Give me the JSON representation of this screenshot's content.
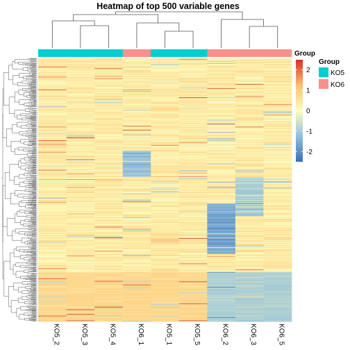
{
  "chart_data": {
    "type": "heatmap",
    "title": "Heatmap of top 500 variable genes",
    "columns": [
      "KO5_2",
      "KO5_3",
      "KO5_4",
      "KO6_1",
      "KO5_1",
      "KO5_5",
      "KO6_2",
      "KO6_3",
      "KO6_5"
    ],
    "column_groups": [
      "KO5",
      "KO5",
      "KO5",
      "KO6",
      "KO5",
      "KO5",
      "KO6",
      "KO6",
      "KO6"
    ],
    "n_rows": 500,
    "color_scale": {
      "ticks": [
        2,
        1,
        0,
        -1,
        -2
      ],
      "range": [
        -2.5,
        2.5
      ],
      "colors": [
        "#3b6fb6",
        "#91bfdb",
        "#fefebe",
        "#fdbf6f",
        "#d73027"
      ]
    },
    "group_legend": {
      "title": "Group",
      "entries": [
        {
          "label": "KO5",
          "color": "#00ced1"
        },
        {
          "label": "KO6",
          "color": "#f8918a"
        }
      ]
    },
    "annotation_legend_title": "Group",
    "row_dendrogram": true,
    "column_dendrogram": true,
    "column_labels_rotated": true
  }
}
